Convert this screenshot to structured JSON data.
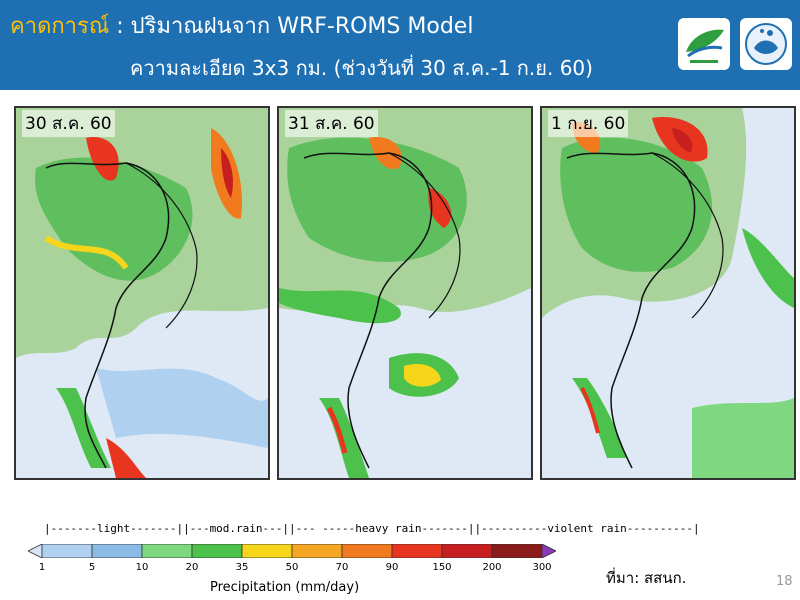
{
  "header": {
    "title_keyword": "คาดการณ์",
    "title_rest": " : ปริมาณฝนจาก WRF-ROMS Model",
    "subtitle": "ความละเอียด 3x3 กม. (ช่วงวันที่ 30 ส.ค.-1 ก.ย. 60)"
  },
  "colors": {
    "header_bg": "#1f6fb3",
    "title_keyword": "#ffc000",
    "sea_bg": "#dfe9f5"
  },
  "maps": [
    {
      "label": "30 ส.ค. 60"
    },
    {
      "label": "31 ส.ค. 60"
    },
    {
      "label": "1 ก.ย. 60"
    }
  ],
  "legend": {
    "categories_line": "|-------light-------||---mod.rain---||--- -----heavy rain-------||----------violent rain----------|",
    "title": "Precipitation (mm/day)",
    "ticks": [
      "1",
      "5",
      "10",
      "20",
      "35",
      "50",
      "70",
      "90",
      "150",
      "200",
      "300"
    ],
    "bin_colors": [
      "#d6e6f7",
      "#b0d0f0",
      "#8bbce8",
      "#7fd87f",
      "#4cc24c",
      "#f5d61a",
      "#f5a623",
      "#f07a1d",
      "#e8351f",
      "#c71f1f",
      "#8b1a1a",
      "#8a3ab9"
    ]
  },
  "footer": {
    "source": "ที่มา: สสนก.",
    "page_number": "18"
  }
}
